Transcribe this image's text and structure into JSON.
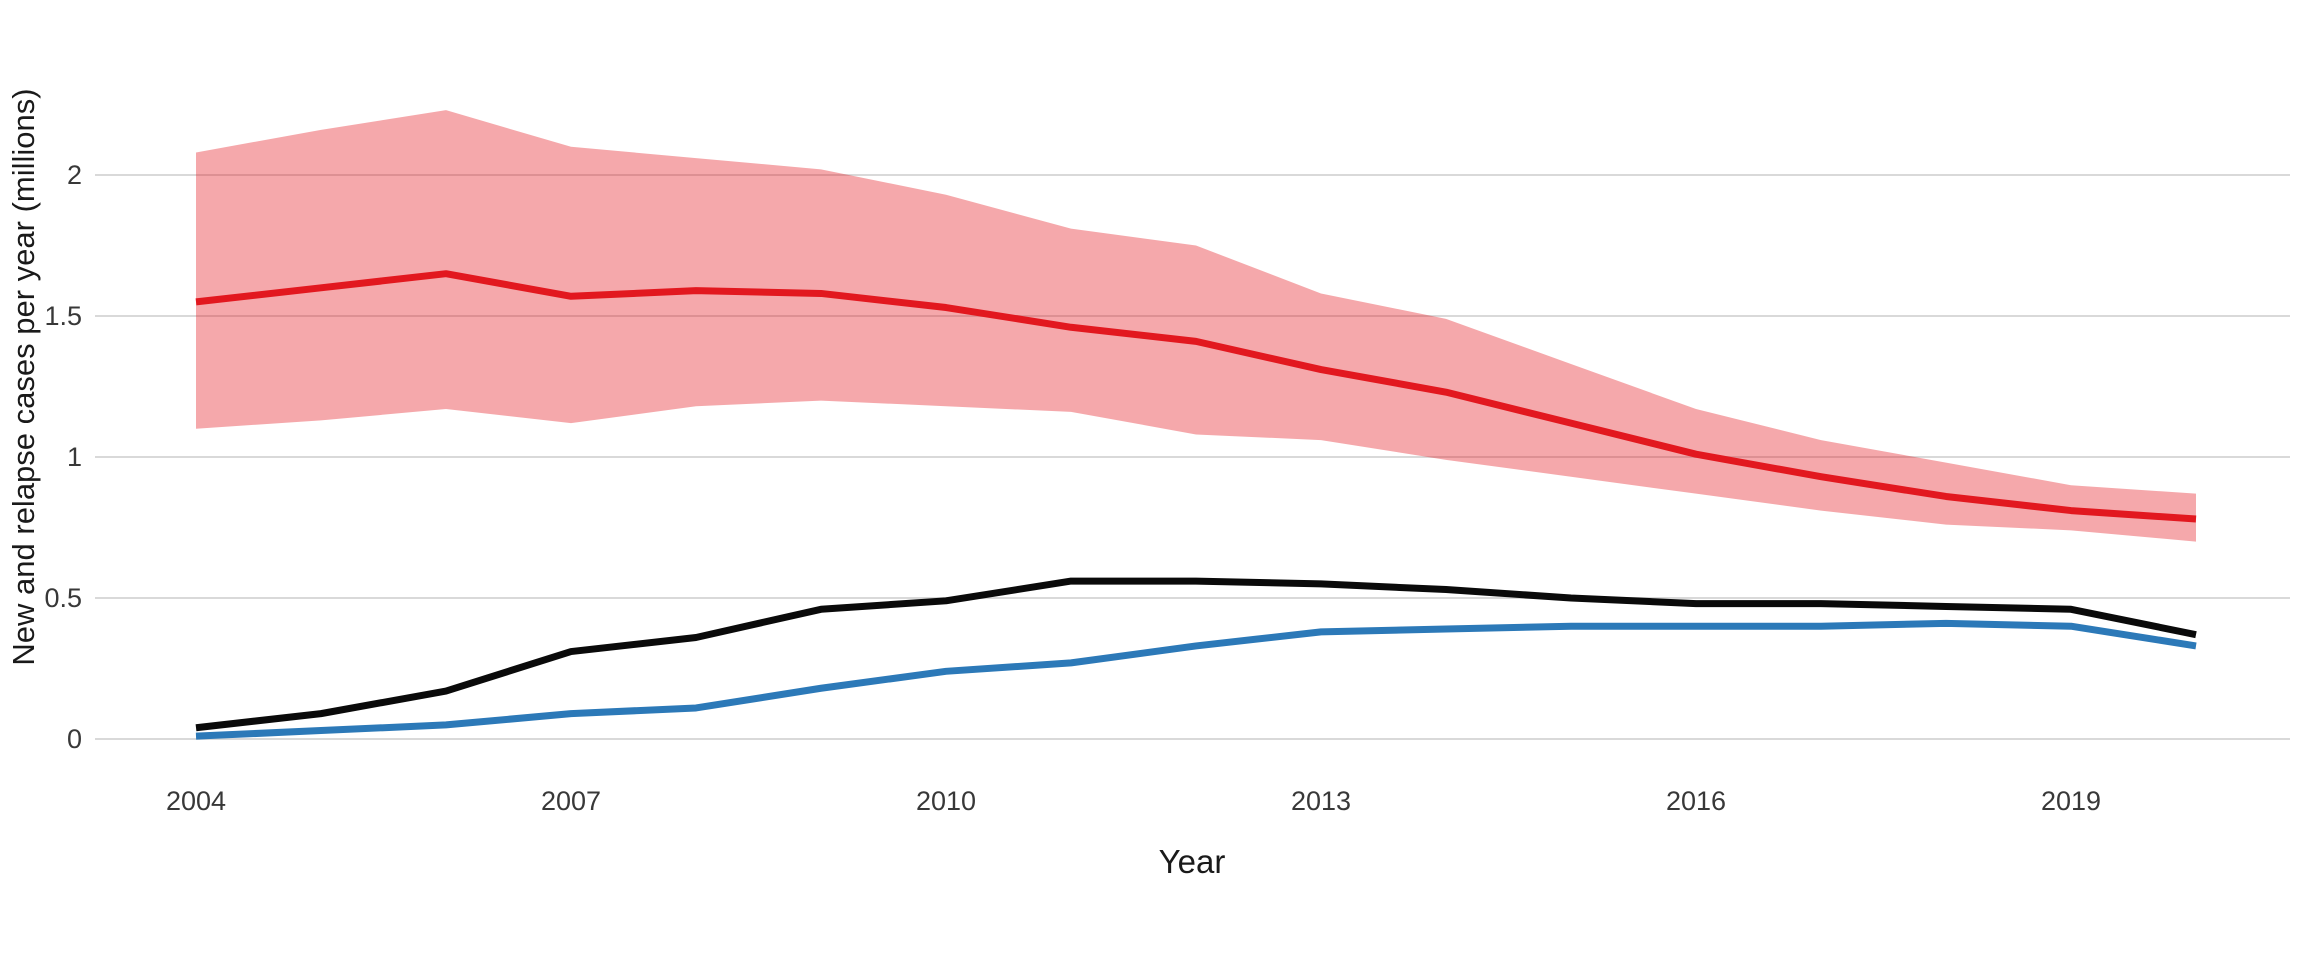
{
  "page": {
    "background_color": "#ffffff"
  },
  "chart_data": {
    "type": "line",
    "title": "",
    "xlabel": "Year",
    "ylabel": "New and relapse cases per year (millions)",
    "x": [
      2004,
      2005,
      2006,
      2007,
      2008,
      2009,
      2010,
      2011,
      2012,
      2013,
      2014,
      2015,
      2016,
      2017,
      2018,
      2019,
      2020
    ],
    "series": [
      {
        "name": "red-line",
        "color": "#e2181f",
        "values": [
          1.55,
          1.6,
          1.65,
          1.57,
          1.59,
          1.58,
          1.53,
          1.46,
          1.41,
          1.31,
          1.23,
          1.12,
          1.01,
          0.93,
          0.86,
          0.81,
          0.78
        ]
      },
      {
        "name": "black-line",
        "color": "#0a0a0a",
        "values": [
          0.04,
          0.09,
          0.17,
          0.31,
          0.36,
          0.46,
          0.49,
          0.56,
          0.56,
          0.55,
          0.53,
          0.5,
          0.48,
          0.48,
          0.47,
          0.46,
          0.37
        ]
      },
      {
        "name": "blue-line",
        "color": "#2c79b8",
        "values": [
          0.01,
          0.03,
          0.05,
          0.09,
          0.11,
          0.18,
          0.24,
          0.27,
          0.33,
          0.38,
          0.39,
          0.4,
          0.4,
          0.4,
          0.41,
          0.4,
          0.33
        ]
      }
    ],
    "band": {
      "name": "red-uncertainty-band",
      "attached_to": "red-line",
      "fill_color": "#e41b23",
      "fill_opacity": 0.38,
      "lower": [
        1.1,
        1.13,
        1.17,
        1.12,
        1.18,
        1.2,
        1.18,
        1.16,
        1.08,
        1.06,
        0.99,
        0.93,
        0.87,
        0.81,
        0.76,
        0.74,
        0.7
      ],
      "upper": [
        2.08,
        2.16,
        2.23,
        2.1,
        2.06,
        2.02,
        1.93,
        1.81,
        1.75,
        1.58,
        1.49,
        1.33,
        1.17,
        1.06,
        0.98,
        0.9,
        0.87
      ]
    },
    "xticks": [
      2004,
      2007,
      2010,
      2013,
      2016,
      2019
    ],
    "xtick_labels": [
      "2004",
      "2007",
      "2010",
      "2013",
      "2016",
      "2019"
    ],
    "yticks": [
      0,
      0.5,
      1,
      1.5,
      2
    ],
    "ytick_labels": [
      "0",
      "0.5",
      "1",
      "1.5",
      "2"
    ],
    "xlim": [
      2004,
      2020
    ],
    "ylim": [
      0,
      2.3
    ],
    "grid": "horizontal-major-only",
    "grid_color": "#d9d9d9",
    "legend": "none"
  }
}
